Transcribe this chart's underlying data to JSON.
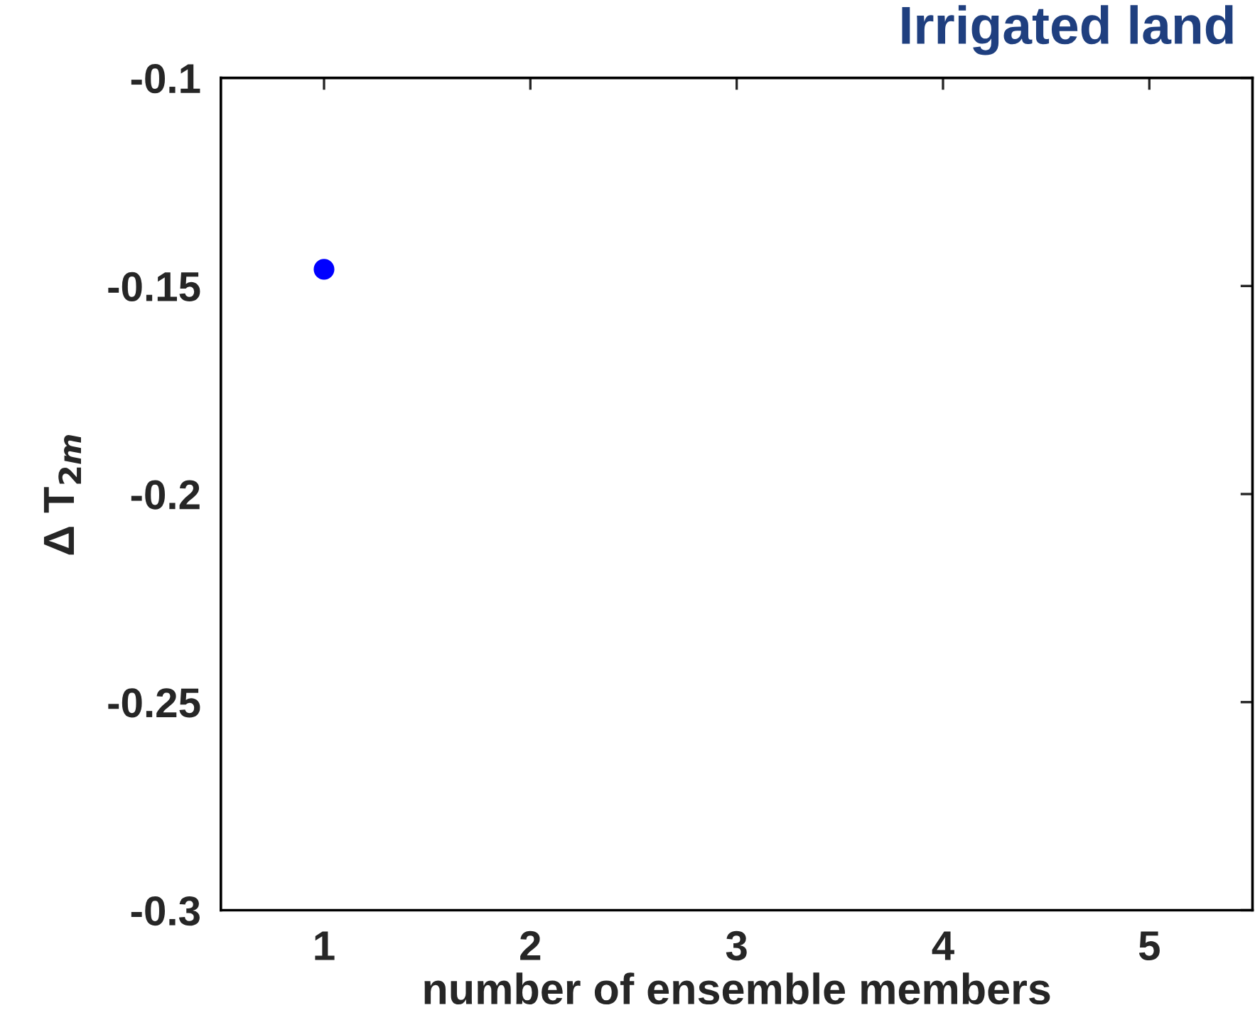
{
  "chart_data": {
    "type": "scatter",
    "title": "Irrigated land",
    "xlabel": "number of ensemble members",
    "ylabel": "Δ T$_{2m}$",
    "x": [
      1
    ],
    "series": [
      {
        "color": "#0000ff",
        "values": [
          -0.146
        ]
      }
    ],
    "xlim": [
      0.5,
      5.5
    ],
    "xticks": [
      1,
      2,
      3,
      4,
      5
    ],
    "ylim": [
      -0.3,
      -0.1
    ],
    "yticks": [
      -0.3,
      -0.25,
      -0.2,
      -0.15,
      -0.1
    ],
    "grid": false,
    "marker": "circle"
  }
}
